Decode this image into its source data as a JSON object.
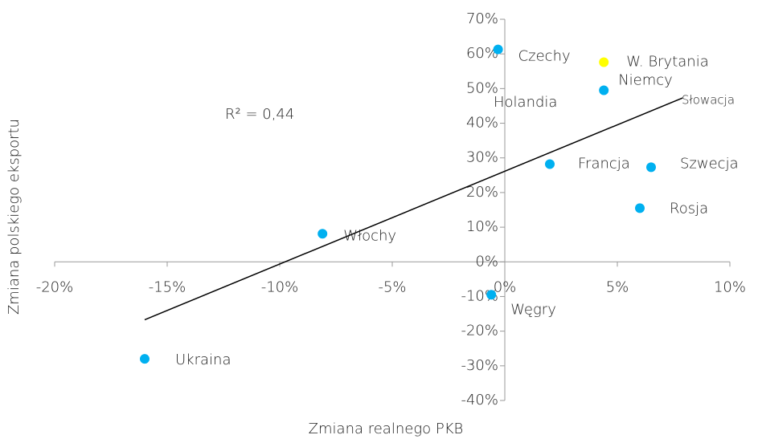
{
  "chart_data": {
    "type": "scatter",
    "x_label": "Zmiana realnego PKB",
    "y_label": "Zmiana polskiego eksportu",
    "xlim": [
      -20,
      10
    ],
    "ylim": [
      -40,
      70
    ],
    "xticks": [
      {
        "value": -20,
        "label": "-20%"
      },
      {
        "value": -15,
        "label": "-15%"
      },
      {
        "value": -10,
        "label": "-10%"
      },
      {
        "value": -5,
        "label": "-5%"
      },
      {
        "value": 0,
        "label": "0%"
      },
      {
        "value": 5,
        "label": "5%"
      },
      {
        "value": 10,
        "label": "10%"
      }
    ],
    "yticks": [
      {
        "value": -40,
        "label": "-40%"
      },
      {
        "value": -30,
        "label": "-30%"
      },
      {
        "value": -20,
        "label": "-20%"
      },
      {
        "value": -10,
        "label": "-10%"
      },
      {
        "value": 0,
        "label": "0%"
      },
      {
        "value": 10,
        "label": "10%"
      },
      {
        "value": 20,
        "label": "20%"
      },
      {
        "value": 30,
        "label": "30%"
      },
      {
        "value": 40,
        "label": "40%"
      },
      {
        "value": 50,
        "label": "50%"
      },
      {
        "value": 60,
        "label": "60%"
      },
      {
        "value": 70,
        "label": "70%"
      }
    ],
    "points": [
      {
        "label": "Czechy",
        "x": -0.3,
        "y": 61.3,
        "color": "#00b0f0"
      },
      {
        "label": "W. Brytania",
        "x": 4.4,
        "y": 57.6,
        "color": "#ffff00"
      },
      {
        "label": "Niemcy",
        "x": 4.4,
        "y": 49.5,
        "color": "#00b0f0"
      },
      {
        "label": "Francja",
        "x": 2.0,
        "y": 28.2,
        "color": "#00b0f0"
      },
      {
        "label": "Szwecja",
        "x": 6.5,
        "y": 27.3,
        "color": "#00b0f0"
      },
      {
        "label": "Rosja",
        "x": 6.0,
        "y": 15.5,
        "color": "#00b0f0"
      },
      {
        "label": "Włochy",
        "x": -8.1,
        "y": 8.1,
        "color": "#00b0f0"
      },
      {
        "label": "Węgry",
        "x": -0.6,
        "y": -9.5,
        "color": "#00b0f0"
      },
      {
        "label": "Ukraina",
        "x": -16.0,
        "y": -28.0,
        "color": "#00b0f0"
      }
    ],
    "annotations": [
      "Holandia",
      "Słowacja"
    ],
    "trendline": {
      "x": [
        -16.0,
        7.9
      ],
      "y": [
        -16.7,
        47.3
      ],
      "color": "#000000"
    },
    "r_squared_label": "R² = 0,44"
  }
}
